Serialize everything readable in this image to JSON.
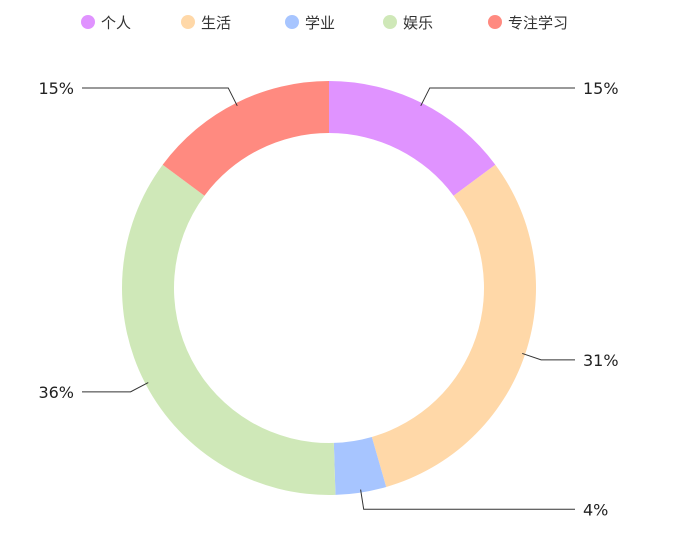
{
  "chart_data": {
    "type": "pie",
    "donut": true,
    "legend_position": "top",
    "series": [
      {
        "name": "个人",
        "value": 15,
        "label": "15%",
        "color": "#E093FF"
      },
      {
        "name": "生活",
        "value": 31,
        "label": "31%",
        "color": "#FFD8A8"
      },
      {
        "name": "学业",
        "value": 4,
        "label": "4%",
        "color": "#A7C5FF"
      },
      {
        "name": "娱乐",
        "value": 36,
        "label": "36%",
        "color": "#CFE8B8"
      },
      {
        "name": "专注学习",
        "value": 15,
        "label": "15%",
        "color": "#FF8A80"
      }
    ]
  }
}
